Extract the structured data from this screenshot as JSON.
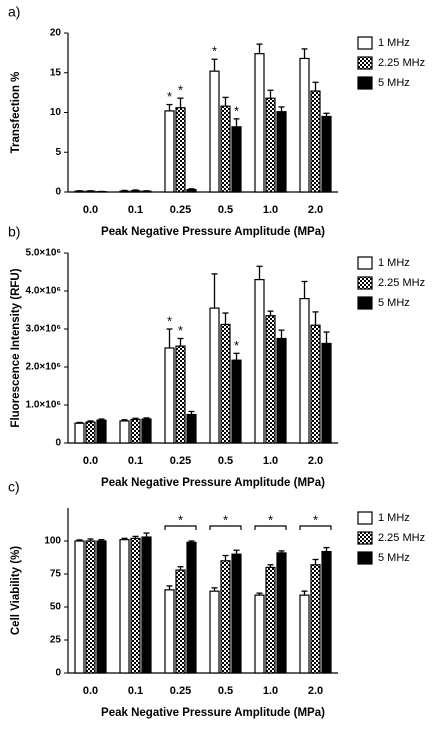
{
  "chart_data": [
    {
      "type": "bar",
      "panel_label": "a)",
      "y_label": "Transfection %",
      "x_label": "Peak Negative Pressure Amplitude (MPa)",
      "categories": [
        "0.0",
        "0.1",
        "0.25",
        "0.5",
        "1.0",
        "2.0"
      ],
      "ylim": [
        0,
        20
      ],
      "yticks": [
        0,
        5,
        10,
        15,
        20
      ],
      "significance_label": "*",
      "series": [
        {
          "name": "1 MHz",
          "color": "#ffffff",
          "values": [
            0.1,
            0.1,
            10.2,
            15.2,
            17.4,
            16.8
          ],
          "errors": [
            0.05,
            0.1,
            0.8,
            1.5,
            1.2,
            1.2
          ],
          "significant": [
            false,
            false,
            true,
            true,
            false,
            false
          ]
        },
        {
          "name": "2.25 MHz",
          "color": "#000000",
          "pattern": "checker",
          "values": [
            0.1,
            0.15,
            10.6,
            10.8,
            11.8,
            12.7
          ],
          "errors": [
            0.05,
            0.1,
            1.2,
            1.1,
            1.0,
            1.1
          ],
          "significant": [
            false,
            false,
            true,
            false,
            false,
            false
          ]
        },
        {
          "name": "5 MHz",
          "color": "#000000",
          "values": [
            0.05,
            0.1,
            0.3,
            8.2,
            10.1,
            9.5
          ],
          "errors": [
            0.02,
            0.05,
            0.1,
            1.0,
            0.6,
            0.4
          ],
          "significant": [
            false,
            false,
            false,
            true,
            false,
            false
          ]
        }
      ]
    },
    {
      "type": "bar",
      "panel_label": "b)",
      "y_label": "Fluorescence Intensity (RFU)",
      "x_label": "Peak Negative Pressure Amplitude (MPa)",
      "categories": [
        "0.0",
        "0.1",
        "0.25",
        "0.5",
        "1.0",
        "2.0"
      ],
      "ylim": [
        0,
        5000000
      ],
      "yticks": [
        0,
        {
          "value": 1000000,
          "label": "1.0×10⁶"
        },
        {
          "value": 2000000,
          "label": "2.0×10⁶"
        },
        {
          "value": 3000000,
          "label": "3.0×10⁶"
        },
        {
          "value": 4000000,
          "label": "4.0×10⁶"
        },
        {
          "value": 5000000,
          "label": "5.0×10⁶"
        }
      ],
      "significance_label": "*",
      "series": [
        {
          "name": "1 MHz",
          "color": "#ffffff",
          "values": [
            520000,
            580000,
            2500000,
            3550000,
            4300000,
            3800000
          ],
          "errors": [
            20000,
            30000,
            500000,
            900000,
            350000,
            450000
          ],
          "significant": [
            false,
            false,
            true,
            false,
            false,
            false
          ]
        },
        {
          "name": "2.25 MHz",
          "color": "#000000",
          "pattern": "checker",
          "values": [
            550000,
            620000,
            2550000,
            3120000,
            3350000,
            3100000
          ],
          "errors": [
            30000,
            30000,
            200000,
            300000,
            120000,
            350000
          ],
          "significant": [
            false,
            false,
            true,
            false,
            false,
            false
          ]
        },
        {
          "name": "5 MHz",
          "color": "#000000",
          "values": [
            600000,
            630000,
            750000,
            2180000,
            2750000,
            2620000
          ],
          "errors": [
            30000,
            30000,
            80000,
            180000,
            220000,
            300000
          ],
          "significant": [
            false,
            false,
            false,
            true,
            false,
            false
          ]
        }
      ]
    },
    {
      "type": "bar",
      "panel_label": "c)",
      "y_label": "Cell Viability (%)",
      "x_label": "Peak Negative Pressure Amplitude (MPa)",
      "categories": [
        "0.0",
        "0.1",
        "0.25",
        "0.5",
        "1.0",
        "2.0"
      ],
      "ylim": [
        0,
        125
      ],
      "yticks": [
        0,
        25,
        50,
        75,
        100
      ],
      "significance_label": "*",
      "significant_groups": [
        false,
        false,
        true,
        true,
        true,
        true
      ],
      "series": [
        {
          "name": "1 MHz",
          "color": "#ffffff",
          "values": [
            100,
            101,
            63,
            62,
            59,
            59
          ],
          "errors": [
            0.8,
            1,
            3,
            2.5,
            1.5,
            3
          ]
        },
        {
          "name": "2.25 MHz",
          "color": "#000000",
          "pattern": "checker",
          "values": [
            100,
            102,
            78,
            85,
            80,
            82
          ],
          "errors": [
            1.5,
            1.5,
            2.5,
            4,
            2,
            4
          ]
        },
        {
          "name": "5 MHz",
          "color": "#000000",
          "values": [
            100,
            103,
            99,
            90,
            91,
            92
          ],
          "errors": [
            1,
            3,
            1,
            3,
            1.5,
            3
          ]
        }
      ]
    }
  ]
}
